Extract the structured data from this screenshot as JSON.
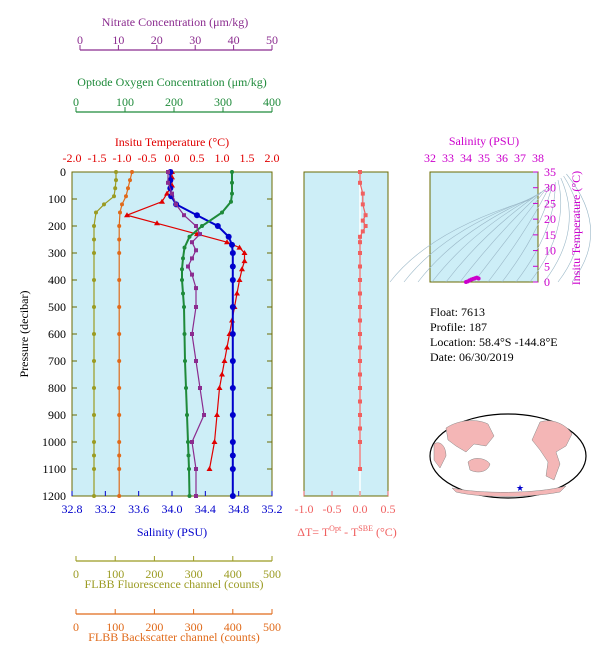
{
  "axes": {
    "nitrate": {
      "label": "Nitrate Concentration (μm/kg)",
      "ticks": [
        "0",
        "10",
        "20",
        "30",
        "40",
        "50"
      ],
      "color": "#8b2c8f"
    },
    "oxygen": {
      "label": "Optode Oxygen Concentration (μm/kg)",
      "ticks": [
        "0",
        "100",
        "200",
        "300",
        "400"
      ],
      "color": "#1e8a3a"
    },
    "temperature": {
      "label": "Insitu Temperature (°C)",
      "ticks": [
        "-2.0",
        "-1.5",
        "-1.0",
        "-0.5",
        "0.0",
        "0.5",
        "1.0",
        "1.5",
        "2.0"
      ],
      "color": "#e00000"
    },
    "salinity": {
      "label": "Salinity (PSU)",
      "ticks": [
        "32.8",
        "33.2",
        "33.6",
        "34.0",
        "34.4",
        "34.8",
        "35.2"
      ],
      "color": "#0000cc"
    },
    "pressure": {
      "label": "Pressure (decibar)",
      "ticks": [
        "0",
        "100",
        "200",
        "300",
        "400",
        "500",
        "600",
        "700",
        "800",
        "900",
        "1000",
        "1100",
        "1200"
      ]
    },
    "fluorescence": {
      "label": "FLBB Fluorescence channel (counts)",
      "ticks": [
        "0",
        "100",
        "200",
        "300",
        "400",
        "500"
      ],
      "color": "#9b9b22"
    },
    "backscatter": {
      "label": "FLBB Backscatter channel (counts)",
      "ticks": [
        "0",
        "100",
        "200",
        "300",
        "400",
        "500"
      ],
      "color": "#e06a1a"
    },
    "delta": {
      "label_prefix": "ΔT= T",
      "sup1": "Opt",
      "label_mid": " - T",
      "sup2": "SBE",
      "label_suffix": " (°C)",
      "ticks": [
        "-1.0",
        "-0.5",
        "0.0",
        "0.5"
      ],
      "color": "#f06060"
    },
    "ts_salinity": {
      "label": "Salinity (PSU)",
      "ticks": [
        "32",
        "33",
        "34",
        "35",
        "36",
        "37",
        "38"
      ],
      "color": "#cc00cc"
    },
    "ts_temperature": {
      "label": "Insitu Temperature (°C)",
      "ticks": [
        "0",
        "5",
        "10",
        "15",
        "20",
        "25",
        "30",
        "35"
      ],
      "color": "#cc00cc"
    }
  },
  "info": {
    "float": "Float:  7613",
    "profile": "Profile:  187",
    "location": "Location:  58.4°S  -144.8°E",
    "date": "Date:  06/30/2019"
  },
  "colors": {
    "plot_bg": "#cdeef7",
    "frame": "#6b6b00",
    "map_land": "#f4b6b6",
    "map_ocean": "#ffffff",
    "marker": "#0000cc"
  },
  "chart_data": [
    {
      "type": "line",
      "name": "main-profile",
      "y_axis": "pressure",
      "ylim": [
        1200,
        0
      ],
      "series": [
        {
          "name": "Temperature",
          "xlim": [
            -2.0,
            2.0
          ],
          "x": [
            0.0,
            0.0,
            0.0,
            -0.1,
            -0.2,
            -0.9,
            -0.3,
            0.5,
            1.1,
            1.35,
            1.45,
            1.45,
            1.4,
            1.35,
            1.3,
            1.25,
            1.2,
            1.15,
            1.1,
            1.05,
            1.0,
            0.95,
            0.9,
            0.85,
            0.75
          ],
          "y": [
            0,
            20,
            50,
            80,
            110,
            160,
            190,
            230,
            260,
            280,
            300,
            330,
            360,
            400,
            450,
            500,
            550,
            600,
            650,
            700,
            750,
            800,
            900,
            1000,
            1100
          ]
        },
        {
          "name": "Salinity",
          "xlim": [
            32.8,
            35.2
          ],
          "x": [
            33.98,
            33.98,
            33.98,
            33.99,
            34.05,
            34.3,
            34.55,
            34.68,
            34.72,
            34.73,
            34.73,
            34.73,
            34.73,
            34.73,
            34.73,
            34.73,
            34.73,
            34.73,
            34.73,
            34.73,
            34.73
          ],
          "y": [
            0,
            30,
            60,
            90,
            120,
            160,
            200,
            240,
            270,
            300,
            350,
            400,
            500,
            600,
            700,
            800,
            900,
            1000,
            1050,
            1100,
            1200
          ]
        },
        {
          "name": "Oxygen",
          "xlim": [
            0,
            400
          ],
          "x": [
            320,
            320,
            320,
            318,
            300,
            260,
            235,
            225,
            222,
            220,
            220,
            222,
            224,
            225,
            226,
            228,
            230,
            232,
            233,
            234,
            235
          ],
          "y": [
            0,
            40,
            80,
            110,
            150,
            200,
            240,
            280,
            320,
            360,
            400,
            450,
            500,
            600,
            700,
            800,
            900,
            1000,
            1050,
            1100,
            1200
          ]
        },
        {
          "name": "Nitrate",
          "xlim": [
            0,
            50
          ],
          "x": [
            24,
            24,
            25,
            26,
            28,
            31,
            32,
            30,
            31,
            30,
            29,
            30,
            31,
            31,
            30,
            31,
            32,
            33,
            30,
            31,
            31
          ],
          "y": [
            0,
            40,
            80,
            120,
            160,
            200,
            230,
            260,
            290,
            320,
            350,
            380,
            430,
            500,
            600,
            700,
            800,
            900,
            1000,
            1100,
            1200
          ]
        },
        {
          "name": "Fluorescence",
          "xlim": [
            0,
            500
          ],
          "x": [
            110,
            110,
            108,
            105,
            80,
            60,
            55,
            55,
            55,
            55,
            55,
            55,
            55,
            55,
            55,
            55,
            55,
            55,
            55
          ],
          "y": [
            0,
            30,
            60,
            90,
            120,
            150,
            200,
            250,
            300,
            400,
            500,
            600,
            700,
            800,
            900,
            1000,
            1050,
            1100,
            1200
          ]
        },
        {
          "name": "Backscatter",
          "xlim": [
            0,
            500
          ],
          "x": [
            150,
            145,
            140,
            135,
            125,
            120,
            118,
            118,
            118,
            118,
            118,
            118,
            118,
            118,
            118,
            118,
            118,
            118,
            118
          ],
          "y": [
            0,
            30,
            60,
            90,
            120,
            150,
            200,
            250,
            300,
            400,
            500,
            600,
            700,
            800,
            900,
            1000,
            1050,
            1100,
            1200
          ]
        }
      ]
    },
    {
      "type": "scatter",
      "name": "delta-temperature",
      "xlim": [
        -1.0,
        0.5
      ],
      "ylim": [
        1200,
        0
      ],
      "x": [
        0.0,
        0.0,
        0.05,
        0.05,
        0.1,
        0.05,
        0.1,
        0.05,
        0.0,
        0.0,
        0.0,
        0.0,
        0.0,
        0.0,
        0.0,
        0.0,
        0.0,
        0.0,
        0.0,
        0.0,
        0.0,
        0.0,
        0.0,
        0.0,
        0.0,
        0.0
      ],
      "y": [
        0,
        40,
        80,
        120,
        160,
        180,
        200,
        220,
        240,
        260,
        300,
        350,
        400,
        450,
        500,
        550,
        600,
        650,
        700,
        750,
        800,
        850,
        900,
        950,
        1000,
        1100
      ]
    },
    {
      "type": "scatter",
      "name": "ts-diagram",
      "xlim": [
        32,
        38
      ],
      "ylim": [
        0,
        35
      ],
      "x": [
        34.0,
        34.1,
        34.2,
        34.3,
        34.4,
        34.5,
        34.6,
        34.7
      ],
      "y": [
        0.0,
        0.2,
        0.5,
        0.8,
        1.0,
        1.2,
        1.4,
        1.1
      ]
    }
  ]
}
